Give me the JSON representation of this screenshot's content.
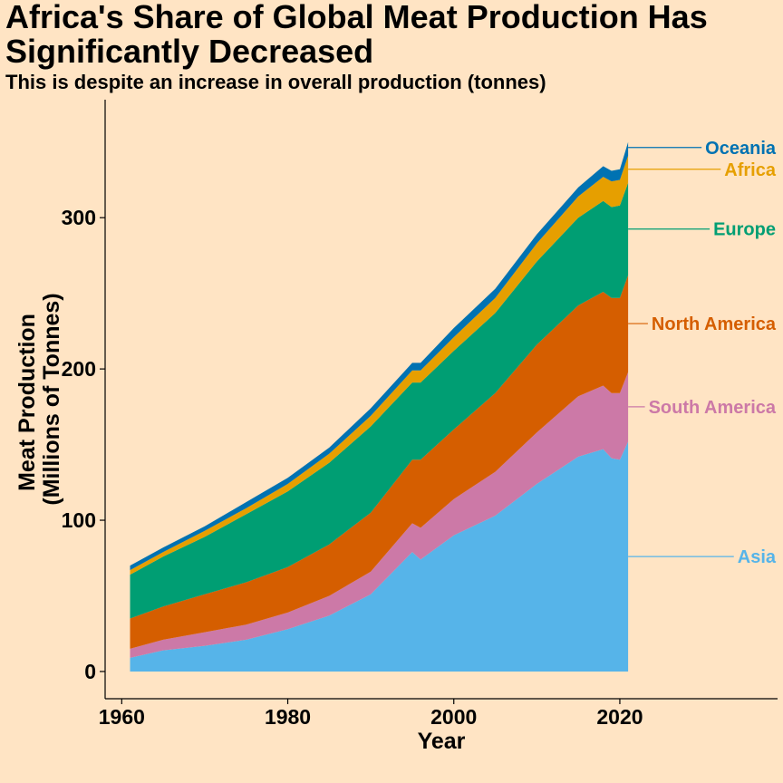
{
  "chart_data": {
    "type": "area",
    "stacked": true,
    "title": "Africa's Share of Global Meat Production Has Significantly Decreased",
    "subtitle": "This is despite an increase in overall production (tonnes)",
    "xlabel": "Year",
    "ylabel_line1": "Meat Production",
    "ylabel_line2": "(Millions of Tonnes)",
    "xlim": [
      1958,
      2039
    ],
    "ylim": [
      -18,
      378
    ],
    "xticks": [
      1960,
      1980,
      2000,
      2020
    ],
    "yticks": [
      0,
      100,
      200,
      300
    ],
    "grid": false,
    "legend": "direct-labels-right",
    "x": [
      1961,
      1965,
      1970,
      1975,
      1980,
      1985,
      1990,
      1995,
      1996,
      2000,
      2005,
      2010,
      2015,
      2018,
      2019,
      2020,
      2021
    ],
    "series": [
      {
        "name": "Asia",
        "color": "#56B4E9",
        "values": [
          9,
          14,
          17,
          21,
          28,
          37,
          51,
          79,
          74,
          90,
          103,
          124,
          142,
          147,
          141,
          140,
          152
        ]
      },
      {
        "name": "South America",
        "color": "#CC79A7",
        "values": [
          6,
          7,
          9,
          10,
          11,
          13,
          15,
          19,
          21,
          24,
          29,
          34,
          40,
          42,
          43,
          44,
          46
        ]
      },
      {
        "name": "North America",
        "color": "#D55E00",
        "values": [
          20,
          22,
          25,
          28,
          30,
          34,
          39,
          42,
          45,
          46,
          52,
          58,
          60,
          62,
          63,
          63,
          64
        ]
      },
      {
        "name": "Europe",
        "color": "#009E73",
        "values": [
          29,
          33,
          38,
          45,
          50,
          54,
          57,
          51,
          51,
          52,
          53,
          55,
          58,
          60,
          60,
          61,
          61
        ]
      },
      {
        "name": "Africa",
        "color": "#E69F00",
        "values": [
          3,
          3,
          4,
          4,
          5,
          6,
          7,
          8,
          8,
          9,
          10,
          12,
          14,
          16,
          17,
          17,
          18
        ]
      },
      {
        "name": "Oceania",
        "color": "#0072B2",
        "values": [
          3,
          3,
          3,
          4,
          4,
          4,
          5,
          5,
          5,
          6,
          6,
          6,
          6,
          7,
          7,
          7,
          9
        ]
      }
    ]
  }
}
